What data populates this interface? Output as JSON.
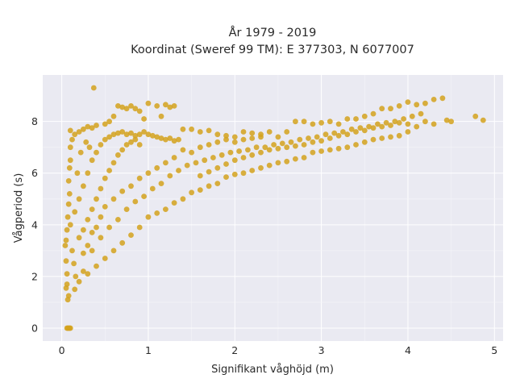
{
  "chart_data": {
    "type": "scatter",
    "title_lines": [
      "År 1979 - 2019",
      "Koordinat (Sweref 99 TM): E 377303, N 6077007"
    ],
    "xlabel": "Signifikant våghöjd (m)",
    "ylabel": "Vågperiod (s)",
    "xlim": [
      -0.22,
      5.1
    ],
    "ylim": [
      -0.5,
      9.8
    ],
    "xticks": [
      0,
      1,
      2,
      3,
      4,
      5
    ],
    "yticks": [
      0,
      2,
      4,
      6,
      8
    ],
    "grid": true,
    "background": "#eaeaf2",
    "marker_color": "#d4a21d",
    "points": [
      [
        0.05,
        1.55
      ],
      [
        0.06,
        1.7
      ],
      [
        0.07,
        1.1
      ],
      [
        0.08,
        1.25
      ],
      [
        0.06,
        2.1
      ],
      [
        0.05,
        2.6
      ],
      [
        0.04,
        3.2
      ],
      [
        0.05,
        3.4
      ],
      [
        0.06,
        3.8
      ],
      [
        0.07,
        4.3
      ],
      [
        0.08,
        4.8
      ],
      [
        0.09,
        5.2
      ],
      [
        0.08,
        5.7
      ],
      [
        0.09,
        6.2
      ],
      [
        0.1,
        6.5
      ],
      [
        0.1,
        7.0
      ],
      [
        0.12,
        7.3
      ],
      [
        0.1,
        7.65
      ],
      [
        0.15,
        7.5
      ],
      [
        0.2,
        7.6
      ],
      [
        0.25,
        7.7
      ],
      [
        0.3,
        7.8
      ],
      [
        0.35,
        7.75
      ],
      [
        0.4,
        7.85
      ],
      [
        0.06,
        0.0
      ],
      [
        0.07,
        0.0
      ],
      [
        0.08,
        0.0
      ],
      [
        0.09,
        0.0
      ],
      [
        0.1,
        0.0
      ],
      [
        0.37,
        9.3
      ],
      [
        0.65,
        8.6
      ],
      [
        0.7,
        8.55
      ],
      [
        0.75,
        8.5
      ],
      [
        0.8,
        8.6
      ],
      [
        0.85,
        8.5
      ],
      [
        0.9,
        8.4
      ],
      [
        1.0,
        8.7
      ],
      [
        1.1,
        8.6
      ],
      [
        1.2,
        8.65
      ],
      [
        1.25,
        8.55
      ],
      [
        1.3,
        8.6
      ],
      [
        0.95,
        8.1
      ],
      [
        1.15,
        8.2
      ],
      [
        0.6,
        8.2
      ],
      [
        0.55,
        8.0
      ],
      [
        0.5,
        7.9
      ],
      [
        1.4,
        7.7
      ],
      [
        1.5,
        7.7
      ],
      [
        1.6,
        7.6
      ],
      [
        1.7,
        7.65
      ],
      [
        1.8,
        7.5
      ],
      [
        1.9,
        7.45
      ],
      [
        2.0,
        7.4
      ],
      [
        2.1,
        7.6
      ],
      [
        2.2,
        7.55
      ],
      [
        2.3,
        7.5
      ],
      [
        2.4,
        7.6
      ],
      [
        2.5,
        7.4
      ],
      [
        2.6,
        7.6
      ],
      [
        2.7,
        8.0
      ],
      [
        2.8,
        8.0
      ],
      [
        2.9,
        7.9
      ],
      [
        3.0,
        7.95
      ],
      [
        3.1,
        8.0
      ],
      [
        3.2,
        7.9
      ],
      [
        3.3,
        8.1
      ],
      [
        3.4,
        8.1
      ],
      [
        3.5,
        8.2
      ],
      [
        3.6,
        8.3
      ],
      [
        3.7,
        8.5
      ],
      [
        3.8,
        8.5
      ],
      [
        3.9,
        8.6
      ],
      [
        4.0,
        8.75
      ],
      [
        4.1,
        8.65
      ],
      [
        4.2,
        8.7
      ],
      [
        4.3,
        8.85
      ],
      [
        4.4,
        8.9
      ],
      [
        4.0,
        7.9
      ],
      [
        4.1,
        7.8
      ],
      [
        4.2,
        8.0
      ],
      [
        4.3,
        7.9
      ],
      [
        4.45,
        8.05
      ],
      [
        4.5,
        8.0
      ],
      [
        4.78,
        8.2
      ],
      [
        4.87,
        8.05
      ],
      [
        3.6,
        7.3
      ],
      [
        3.7,
        7.35
      ],
      [
        3.8,
        7.4
      ],
      [
        3.9,
        7.45
      ],
      [
        4.0,
        7.6
      ],
      [
        3.5,
        7.2
      ],
      [
        3.4,
        7.1
      ],
      [
        3.3,
        7.0
      ],
      [
        3.2,
        6.95
      ],
      [
        3.1,
        6.9
      ],
      [
        3.0,
        6.85
      ],
      [
        2.9,
        6.8
      ],
      [
        2.8,
        6.6
      ],
      [
        2.7,
        6.55
      ],
      [
        2.6,
        6.45
      ],
      [
        2.5,
        6.4
      ],
      [
        2.4,
        6.3
      ],
      [
        2.3,
        6.2
      ],
      [
        2.2,
        6.1
      ],
      [
        2.1,
        6.0
      ],
      [
        2.0,
        5.95
      ],
      [
        1.9,
        5.85
      ],
      [
        1.8,
        5.6
      ],
      [
        1.7,
        5.5
      ],
      [
        1.6,
        5.35
      ],
      [
        1.5,
        5.25
      ],
      [
        1.4,
        5.0
      ],
      [
        1.3,
        4.85
      ],
      [
        1.2,
        4.6
      ],
      [
        1.1,
        4.45
      ],
      [
        1.0,
        4.3
      ],
      [
        0.9,
        3.9
      ],
      [
        0.8,
        3.6
      ],
      [
        0.7,
        3.3
      ],
      [
        0.6,
        3.0
      ],
      [
        0.5,
        2.7
      ],
      [
        0.4,
        2.4
      ],
      [
        0.3,
        2.1
      ],
      [
        0.2,
        1.8
      ],
      [
        0.15,
        1.5
      ],
      [
        0.25,
        2.2
      ],
      [
        0.35,
        3.0
      ],
      [
        0.45,
        3.5
      ],
      [
        0.55,
        3.9
      ],
      [
        0.65,
        4.2
      ],
      [
        0.75,
        4.6
      ],
      [
        0.85,
        4.9
      ],
      [
        0.95,
        5.1
      ],
      [
        1.05,
        5.4
      ],
      [
        1.15,
        5.6
      ],
      [
        1.25,
        5.9
      ],
      [
        1.35,
        6.1
      ],
      [
        1.45,
        6.3
      ],
      [
        1.55,
        6.4
      ],
      [
        1.65,
        6.5
      ],
      [
        1.75,
        6.6
      ],
      [
        1.85,
        6.7
      ],
      [
        1.95,
        6.8
      ],
      [
        2.05,
        6.85
      ],
      [
        2.15,
        6.9
      ],
      [
        2.25,
        7.0
      ],
      [
        2.35,
        7.0
      ],
      [
        2.45,
        7.1
      ],
      [
        2.55,
        7.15
      ],
      [
        2.65,
        7.2
      ],
      [
        2.75,
        7.3
      ],
      [
        2.85,
        7.35
      ],
      [
        2.95,
        7.4
      ],
      [
        3.05,
        7.5
      ],
      [
        3.15,
        7.55
      ],
      [
        3.25,
        7.6
      ],
      [
        3.35,
        7.7
      ],
      [
        3.45,
        7.75
      ],
      [
        3.55,
        7.8
      ],
      [
        3.65,
        7.9
      ],
      [
        3.75,
        7.95
      ],
      [
        3.85,
        8.0
      ],
      [
        3.95,
        8.1
      ],
      [
        4.05,
        8.2
      ],
      [
        4.15,
        8.3
      ],
      [
        0.2,
        5.0
      ],
      [
        0.25,
        5.5
      ],
      [
        0.3,
        6.0
      ],
      [
        0.35,
        6.5
      ],
      [
        0.4,
        6.8
      ],
      [
        0.45,
        7.1
      ],
      [
        0.5,
        7.3
      ],
      [
        0.55,
        7.4
      ],
      [
        0.6,
        7.5
      ],
      [
        0.65,
        7.55
      ],
      [
        0.7,
        7.6
      ],
      [
        0.75,
        7.5
      ],
      [
        0.8,
        7.55
      ],
      [
        0.85,
        7.45
      ],
      [
        0.9,
        7.5
      ],
      [
        0.95,
        7.6
      ],
      [
        1.0,
        7.5
      ],
      [
        1.05,
        7.45
      ],
      [
        1.1,
        7.4
      ],
      [
        1.15,
        7.35
      ],
      [
        1.2,
        7.3
      ],
      [
        1.25,
        7.35
      ],
      [
        1.3,
        7.25
      ],
      [
        1.35,
        7.3
      ],
      [
        0.15,
        4.5
      ],
      [
        0.2,
        3.5
      ],
      [
        0.25,
        3.8
      ],
      [
        0.3,
        4.2
      ],
      [
        0.35,
        4.6
      ],
      [
        0.4,
        5.0
      ],
      [
        0.45,
        5.4
      ],
      [
        0.5,
        5.8
      ],
      [
        0.55,
        6.1
      ],
      [
        0.6,
        6.4
      ],
      [
        0.65,
        6.7
      ],
      [
        0.7,
        6.9
      ],
      [
        0.75,
        7.1
      ],
      [
        0.8,
        7.2
      ],
      [
        0.85,
        7.3
      ],
      [
        0.9,
        7.1
      ],
      [
        0.1,
        4.0
      ],
      [
        0.12,
        3.0
      ],
      [
        0.14,
        2.5
      ],
      [
        0.16,
        2.0
      ],
      [
        0.18,
        6.0
      ],
      [
        0.22,
        6.8
      ],
      [
        0.28,
        7.2
      ],
      [
        0.32,
        7.0
      ],
      [
        1.5,
        6.8
      ],
      [
        1.6,
        7.0
      ],
      [
        1.7,
        7.1
      ],
      [
        1.8,
        7.2
      ],
      [
        1.9,
        7.3
      ],
      [
        2.0,
        7.2
      ],
      [
        2.1,
        7.3
      ],
      [
        2.2,
        7.35
      ],
      [
        2.3,
        7.4
      ],
      [
        1.4,
        6.9
      ],
      [
        1.3,
        6.6
      ],
      [
        1.2,
        6.4
      ],
      [
        1.1,
        6.2
      ],
      [
        1.0,
        6.0
      ],
      [
        0.9,
        5.8
      ],
      [
        0.8,
        5.5
      ],
      [
        0.7,
        5.3
      ],
      [
        0.6,
        5.0
      ],
      [
        0.5,
        4.7
      ],
      [
        0.45,
        4.3
      ],
      [
        0.4,
        3.9
      ],
      [
        0.35,
        3.7
      ],
      [
        0.3,
        3.2
      ],
      [
        0.25,
        2.9
      ],
      [
        1.6,
        5.9
      ],
      [
        1.7,
        6.05
      ],
      [
        1.8,
        6.2
      ],
      [
        1.9,
        6.35
      ],
      [
        2.0,
        6.5
      ],
      [
        2.1,
        6.6
      ],
      [
        2.2,
        6.7
      ],
      [
        2.3,
        6.8
      ],
      [
        2.4,
        6.9
      ],
      [
        2.5,
        6.95
      ],
      [
        2.6,
        7.0
      ],
      [
        2.7,
        7.05
      ],
      [
        2.8,
        7.1
      ],
      [
        2.9,
        7.2
      ],
      [
        3.0,
        7.25
      ],
      [
        3.1,
        7.35
      ],
      [
        3.2,
        7.45
      ],
      [
        3.3,
        7.5
      ],
      [
        3.4,
        7.6
      ],
      [
        3.5,
        7.65
      ],
      [
        3.6,
        7.75
      ],
      [
        3.7,
        7.8
      ],
      [
        3.8,
        7.85
      ],
      [
        3.9,
        7.95
      ]
    ]
  }
}
